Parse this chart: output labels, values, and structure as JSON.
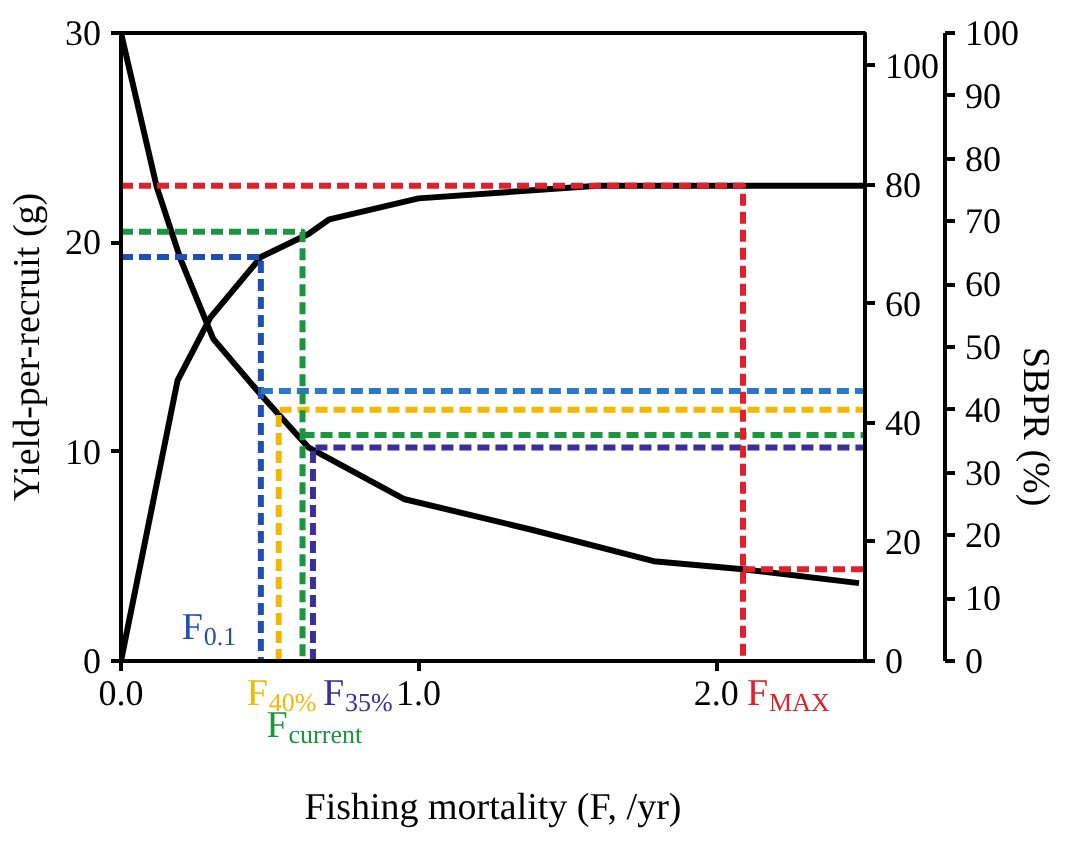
{
  "chart_data": {
    "type": "line",
    "xlabel": "Fishing mortality (F, /yr)",
    "ylabel": "Yield-per-recruit (g)",
    "y2label": "SBPR (%)",
    "xlim": [
      0,
      2.5
    ],
    "xticks": [
      {
        "value": 0,
        "label": "0.0"
      },
      {
        "value": 1,
        "label": "1.0"
      },
      {
        "value": 2,
        "label": "2.0"
      }
    ],
    "ylim": [
      0,
      30
    ],
    "yticks": [
      0,
      10,
      20,
      30
    ],
    "y2lim": [
      0,
      100
    ],
    "y2ticks": [
      0,
      10,
      20,
      30,
      40,
      50,
      60,
      70,
      80,
      90,
      100
    ],
    "y3lim": [
      0,
      105.5
    ],
    "y3ticks": [
      0,
      20,
      40,
      60,
      80,
      100
    ],
    "grid": false,
    "series": [
      {
        "color": "#000000",
        "line_style": "solid",
        "x": [
          0,
          0.19,
          0.3,
          0.47,
          0.63,
          0.7,
          1.0,
          1.6,
          2.5
        ],
        "values": [
          0,
          13.4,
          16.4,
          19.3,
          20.4,
          21.1,
          22.1,
          22.7,
          22.7
        ]
      },
      {
        "color": "#000000",
        "line_style": "solid",
        "axis": "y2",
        "x": [
          0,
          0.12,
          0.2,
          0.31,
          0.47,
          0.63,
          0.95,
          1.38,
          1.79,
          2.09,
          2.48
        ],
        "values": [
          100,
          75.5,
          64,
          51.3,
          42.4,
          34,
          25.8,
          20.9,
          15.9,
          14.6,
          12.4
        ]
      },
      {
        "color": "#1f4fb0",
        "line_style": "dashed",
        "x": [
          0,
          0.47,
          0.47
        ],
        "values": [
          19.3,
          19.3,
          0
        ]
      },
      {
        "color": "#2a78c8",
        "line_style": "dashed",
        "axis": "y2",
        "x": [
          0.47,
          2.5
        ],
        "values": [
          43,
          43
        ]
      },
      {
        "color": "#f5b800",
        "line_style": "dashed",
        "axis": "y2",
        "x": [
          0.53,
          0.53,
          2.5
        ],
        "values": [
          0,
          40,
          40
        ]
      },
      {
        "color": "#1a9641",
        "line_style": "dashed",
        "x": [
          0,
          0.61,
          0.61
        ],
        "values": [
          20.5,
          20.5,
          0
        ]
      },
      {
        "color": "#1a9641",
        "line_style": "dashed",
        "axis": "y2",
        "x": [
          0.61,
          2.5
        ],
        "values": [
          36,
          36
        ]
      },
      {
        "color": "#3b2e9a",
        "line_style": "dashed",
        "axis": "y2",
        "x": [
          0.645,
          0.645,
          2.5
        ],
        "values": [
          0,
          34,
          34
        ]
      },
      {
        "color": "#e0202a",
        "line_style": "dashed",
        "x": [
          0,
          2.09,
          2.09
        ],
        "values": [
          22.7,
          22.7,
          0
        ]
      },
      {
        "color": "#e0202a",
        "line_style": "dashed",
        "axis": "y2",
        "x": [
          2.09,
          2.5
        ],
        "values": [
          14.6,
          14.6
        ]
      }
    ],
    "annotations": [
      {
        "text": "F$_{0.1}$",
        "x": 0.47,
        "y": 0
      },
      {
        "text": "F$_{40%}$",
        "x": 0.53,
        "y": 0
      },
      {
        "text": "F$_{current}$",
        "x": 0.61,
        "y": 0
      },
      {
        "text": "F$_{35%}$",
        "x": 0.645,
        "y": 0
      },
      {
        "text": "F$_{MAX}$",
        "x": 2.09,
        "y": 0
      }
    ]
  }
}
